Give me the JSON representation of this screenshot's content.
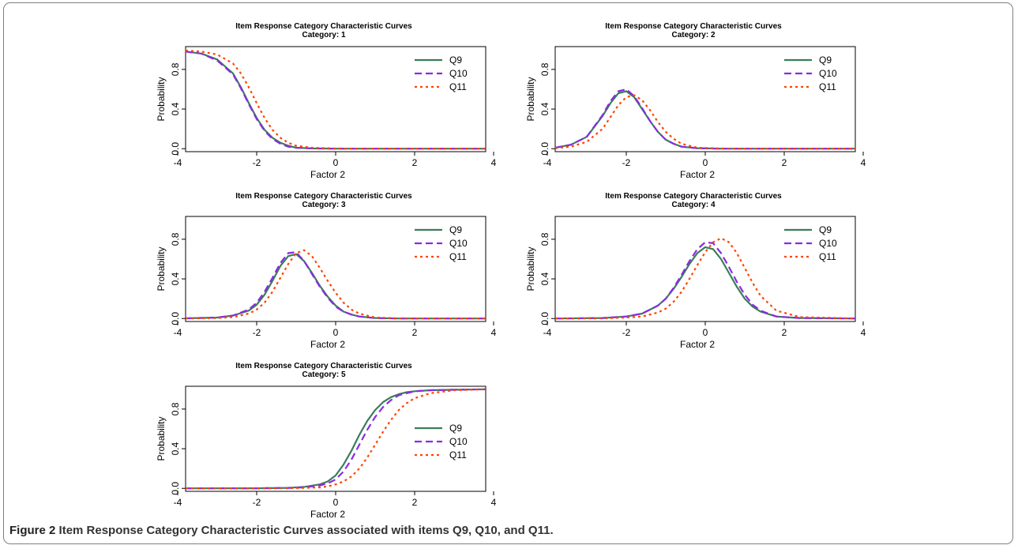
{
  "caption": {
    "figure_label": "Figure 2",
    "text": "Item Response Category Characteristic Curves associated with items Q9, Q10, and Q11."
  },
  "colors": {
    "Q9": "#3a7d5a",
    "Q10": "#8a2be2",
    "Q11": "#ff4500"
  },
  "chart_data": [
    {
      "type": "line",
      "title": "Item Response Category Characteristic Curves",
      "subtitle": "Category: 1",
      "xlabel": "Factor 2",
      "ylabel": "Probability",
      "xlim": [
        -3.8,
        3.8
      ],
      "ylim": [
        0,
        1
      ],
      "xticks": [
        "-4",
        "-2",
        "0",
        "2",
        "4"
      ],
      "yticks": [
        "0.0",
        "0.4",
        "0.8"
      ],
      "legend_position": "top-right",
      "grid": false,
      "x": [
        -3.8,
        -3.4,
        -3.0,
        -2.6,
        -2.4,
        -2.2,
        -2.0,
        -1.8,
        -1.6,
        -1.4,
        -1.2,
        -1.0,
        -0.6,
        0.0,
        1.0,
        2.0,
        3.8
      ],
      "series": [
        {
          "name": "Q9",
          "values": [
            0.98,
            0.96,
            0.9,
            0.76,
            0.62,
            0.46,
            0.31,
            0.19,
            0.11,
            0.06,
            0.03,
            0.01,
            0.003,
            0,
            0,
            0,
            0
          ]
        },
        {
          "name": "Q10",
          "values": [
            0.98,
            0.96,
            0.89,
            0.75,
            0.61,
            0.45,
            0.3,
            0.18,
            0.1,
            0.05,
            0.02,
            0.01,
            0.003,
            0,
            0,
            0,
            0
          ]
        },
        {
          "name": "Q11",
          "values": [
            0.99,
            0.98,
            0.95,
            0.86,
            0.76,
            0.62,
            0.46,
            0.31,
            0.19,
            0.11,
            0.06,
            0.03,
            0.01,
            0.002,
            0,
            0,
            0
          ]
        }
      ]
    },
    {
      "type": "line",
      "title": "Item Response Category Characteristic Curves",
      "subtitle": "Category: 2",
      "xlabel": "Factor 2",
      "ylabel": "Probability",
      "xlim": [
        -3.8,
        3.8
      ],
      "ylim": [
        0,
        1
      ],
      "xticks": [
        "-4",
        "-2",
        "0",
        "2",
        "4"
      ],
      "yticks": [
        "0.0",
        "0.4",
        "0.8"
      ],
      "legend_position": "top-right",
      "grid": false,
      "x": [
        -3.8,
        -3.4,
        -3.0,
        -2.6,
        -2.4,
        -2.2,
        -2.0,
        -1.8,
        -1.6,
        -1.4,
        -1.2,
        -1.0,
        -0.8,
        -0.6,
        -0.2,
        0.4,
        1.0,
        2.0,
        3.8
      ],
      "series": [
        {
          "name": "Q9",
          "values": [
            0.01,
            0.04,
            0.12,
            0.33,
            0.46,
            0.56,
            0.58,
            0.52,
            0.4,
            0.28,
            0.17,
            0.09,
            0.05,
            0.02,
            0.005,
            0,
            0,
            0,
            0
          ]
        },
        {
          "name": "Q10",
          "values": [
            0.01,
            0.04,
            0.12,
            0.34,
            0.48,
            0.58,
            0.6,
            0.53,
            0.41,
            0.28,
            0.17,
            0.09,
            0.05,
            0.02,
            0.005,
            0,
            0,
            0,
            0
          ]
        },
        {
          "name": "Q11",
          "values": [
            0.005,
            0.02,
            0.07,
            0.2,
            0.32,
            0.44,
            0.52,
            0.54,
            0.49,
            0.39,
            0.27,
            0.17,
            0.1,
            0.05,
            0.01,
            0.002,
            0,
            0,
            0
          ]
        }
      ]
    },
    {
      "type": "line",
      "title": "Item Response Category Characteristic Curves",
      "subtitle": "Category: 3",
      "xlabel": "Factor 2",
      "ylabel": "Probability",
      "xlim": [
        -3.8,
        3.8
      ],
      "ylim": [
        0,
        1
      ],
      "xticks": [
        "-4",
        "-2",
        "0",
        "2",
        "4"
      ],
      "yticks": [
        "0.0",
        "0.4",
        "0.8"
      ],
      "legend_position": "top-right",
      "grid": false,
      "x": [
        -3.8,
        -3.0,
        -2.6,
        -2.2,
        -2.0,
        -1.8,
        -1.6,
        -1.4,
        -1.2,
        -1.0,
        -0.8,
        -0.6,
        -0.4,
        -0.2,
        0.0,
        0.2,
        0.4,
        0.6,
        1.0,
        1.6,
        3.8
      ],
      "series": [
        {
          "name": "Q9",
          "values": [
            0.002,
            0.01,
            0.03,
            0.08,
            0.14,
            0.24,
            0.38,
            0.53,
            0.63,
            0.65,
            0.58,
            0.46,
            0.33,
            0.22,
            0.13,
            0.07,
            0.04,
            0.02,
            0.005,
            0,
            0
          ]
        },
        {
          "name": "Q10",
          "values": [
            0.002,
            0.01,
            0.03,
            0.09,
            0.16,
            0.27,
            0.41,
            0.56,
            0.66,
            0.67,
            0.58,
            0.45,
            0.32,
            0.21,
            0.12,
            0.07,
            0.04,
            0.02,
            0.005,
            0,
            0
          ]
        },
        {
          "name": "Q11",
          "values": [
            0.001,
            0.005,
            0.015,
            0.05,
            0.09,
            0.16,
            0.27,
            0.41,
            0.55,
            0.66,
            0.69,
            0.63,
            0.51,
            0.38,
            0.26,
            0.16,
            0.09,
            0.05,
            0.01,
            0.002,
            0
          ]
        }
      ]
    },
    {
      "type": "line",
      "title": "Item Response Category Characteristic Curves",
      "subtitle": "Category: 4",
      "xlabel": "Factor 2",
      "ylabel": "Probability",
      "xlim": [
        -3.8,
        3.8
      ],
      "ylim": [
        0,
        1
      ],
      "xticks": [
        "-4",
        "-2",
        "0",
        "2",
        "4"
      ],
      "yticks": [
        "0.0",
        "0.4",
        "0.8"
      ],
      "legend_position": "top-right",
      "grid": false,
      "x": [
        -3.8,
        -2.6,
        -2.0,
        -1.6,
        -1.2,
        -1.0,
        -0.8,
        -0.6,
        -0.4,
        -0.2,
        0.0,
        0.2,
        0.4,
        0.6,
        0.8,
        1.0,
        1.2,
        1.4,
        1.8,
        2.4,
        3.8
      ],
      "series": [
        {
          "name": "Q9",
          "values": [
            0,
            0.005,
            0.02,
            0.05,
            0.13,
            0.2,
            0.3,
            0.42,
            0.55,
            0.66,
            0.72,
            0.7,
            0.6,
            0.46,
            0.32,
            0.2,
            0.12,
            0.07,
            0.02,
            0.005,
            0
          ]
        },
        {
          "name": "Q10",
          "values": [
            0,
            0.005,
            0.02,
            0.05,
            0.13,
            0.2,
            0.31,
            0.44,
            0.58,
            0.7,
            0.77,
            0.76,
            0.66,
            0.52,
            0.37,
            0.24,
            0.14,
            0.08,
            0.02,
            0.005,
            0
          ]
        },
        {
          "name": "Q11",
          "values": [
            0,
            0.002,
            0.01,
            0.02,
            0.06,
            0.1,
            0.17,
            0.27,
            0.4,
            0.54,
            0.67,
            0.77,
            0.81,
            0.77,
            0.66,
            0.51,
            0.36,
            0.23,
            0.08,
            0.015,
            0
          ]
        }
      ]
    },
    {
      "type": "line",
      "title": "Item Response Category Characteristic Curves",
      "subtitle": "Category: 5",
      "xlabel": "Factor 2",
      "ylabel": "Probability",
      "xlim": [
        -3.8,
        3.8
      ],
      "ylim": [
        0,
        1
      ],
      "xticks": [
        "-4",
        "-2",
        "0",
        "2",
        "4"
      ],
      "yticks": [
        "0.0",
        "0.4",
        "0.8"
      ],
      "legend_position": "bottom-right",
      "grid": false,
      "x": [
        -3.8,
        -2.0,
        -1.2,
        -0.8,
        -0.4,
        -0.2,
        0.0,
        0.2,
        0.4,
        0.6,
        0.8,
        1.0,
        1.2,
        1.4,
        1.6,
        1.8,
        2.0,
        2.4,
        3.0,
        3.8
      ],
      "series": [
        {
          "name": "Q9",
          "values": [
            0,
            0.001,
            0.005,
            0.015,
            0.04,
            0.07,
            0.13,
            0.24,
            0.38,
            0.54,
            0.68,
            0.79,
            0.87,
            0.92,
            0.95,
            0.97,
            0.98,
            0.99,
            0.995,
            1.0
          ]
        },
        {
          "name": "Q10",
          "values": [
            0,
            0.001,
            0.005,
            0.01,
            0.03,
            0.05,
            0.09,
            0.17,
            0.29,
            0.44,
            0.59,
            0.72,
            0.82,
            0.89,
            0.94,
            0.96,
            0.98,
            0.99,
            0.995,
            1.0
          ]
        },
        {
          "name": "Q11",
          "values": [
            0,
            0,
            0.002,
            0.005,
            0.01,
            0.02,
            0.04,
            0.07,
            0.12,
            0.2,
            0.31,
            0.44,
            0.57,
            0.69,
            0.79,
            0.86,
            0.91,
            0.96,
            0.99,
            1.0
          ]
        }
      ]
    }
  ]
}
